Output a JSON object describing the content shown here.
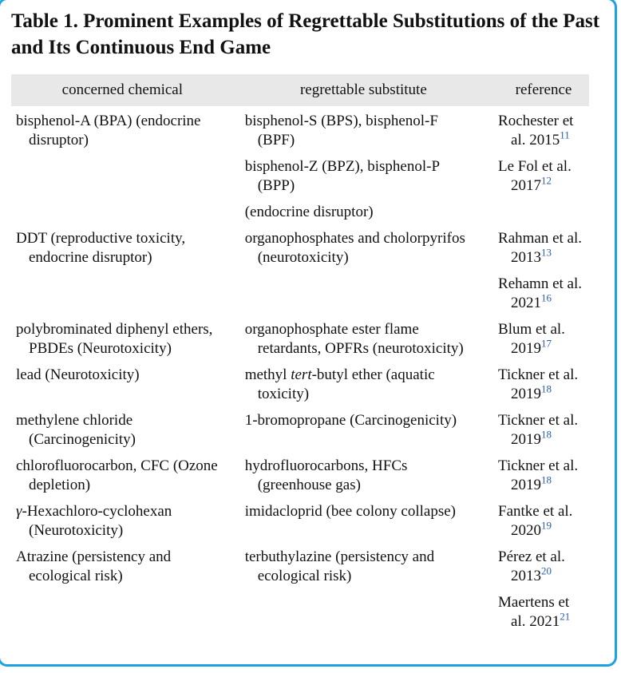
{
  "title": "Table 1. Prominent Examples of Regrettable Substitutions of the Past and Its Continuous End Game",
  "columns": [
    "concerned chemical",
    "regrettable substitute",
    "reference"
  ],
  "colors": {
    "border": "#1aa3e0",
    "header_bg": "#e8e8e8",
    "citation": "#2a5db0"
  },
  "rows": [
    {
      "chemical": [
        {
          "t": "bisphenol-A (BPA) (endocrine disruptor)"
        }
      ],
      "subs": [
        {
          "substitute": [
            {
              "t": "bisphenol-S (BPS), bisphenol-F (BPF)"
            }
          ],
          "reference": "Rochester et al. 2015",
          "ref_num": "11"
        },
        {
          "substitute": [
            {
              "t": "bisphenol-Z (BPZ), bisphenol-P (BPP)"
            }
          ],
          "reference": "Le Fol et al. 2017",
          "ref_num": "12"
        },
        {
          "substitute": [
            {
              "t": "(endocrine disruptor)"
            }
          ],
          "reference": "",
          "ref_num": ""
        }
      ]
    },
    {
      "chemical": [
        {
          "t": "DDT (reproductive toxicity, endocrine disruptor)"
        }
      ],
      "subs": [
        {
          "substitute": [
            {
              "t": "organophosphates and cholorpyrifos (neurotoxicity)"
            }
          ],
          "reference": "Rahman et al. 2013",
          "ref_num": "13"
        },
        {
          "substitute": [],
          "reference": "Rehamn et al. 2021",
          "ref_num": "16"
        }
      ]
    },
    {
      "chemical": [
        {
          "t": "polybrominated diphenyl ethers, PBDEs (Neurotoxicity)"
        }
      ],
      "subs": [
        {
          "substitute": [
            {
              "t": "organophosphate ester flame retardants, OPFRs (neurotoxicity)"
            }
          ],
          "reference": "Blum et al. 2019",
          "ref_num": "17"
        }
      ]
    },
    {
      "chemical": [
        {
          "t": "lead (Neurotoxicity)"
        }
      ],
      "subs": [
        {
          "substitute": [
            {
              "t": "methyl "
            },
            {
              "t": "tert",
              "i": true
            },
            {
              "t": "-butyl ether (aquatic toxicity)"
            }
          ],
          "reference": "Tickner et al. 2019",
          "ref_num": "18"
        }
      ]
    },
    {
      "chemical": [
        {
          "t": "methylene chloride (Carcinogenicity)"
        }
      ],
      "subs": [
        {
          "substitute": [
            {
              "t": "1-bromopropane (Carcinogenicity)"
            }
          ],
          "reference": "Tickner et al. 2019",
          "ref_num": "18"
        }
      ]
    },
    {
      "chemical": [
        {
          "t": "chlorofluorocarbon, CFC (Ozone depletion)"
        }
      ],
      "subs": [
        {
          "substitute": [
            {
              "t": "hydrofluorocarbons, HFCs (greenhouse gas)"
            }
          ],
          "reference": "Tickner et al. 2019",
          "ref_num": "18"
        }
      ]
    },
    {
      "chemical": [
        {
          "t": "γ",
          "i": true
        },
        {
          "t": "-Hexachloro-cyclohexan (Neurotoxicity)"
        }
      ],
      "subs": [
        {
          "substitute": [
            {
              "t": "imidacloprid (bee colony collapse)"
            }
          ],
          "reference": "Fantke et al. 2020",
          "ref_num": "19"
        }
      ]
    },
    {
      "chemical": [
        {
          "t": "Atrazine (persistency and ecological risk)"
        }
      ],
      "subs": [
        {
          "substitute": [
            {
              "t": "terbuthylazine (persistency and ecological risk)"
            }
          ],
          "reference": "Pérez et al. 2013",
          "ref_num": "20"
        },
        {
          "substitute": [],
          "reference": "Maertens et al. 2021",
          "ref_num": "21"
        }
      ]
    }
  ]
}
